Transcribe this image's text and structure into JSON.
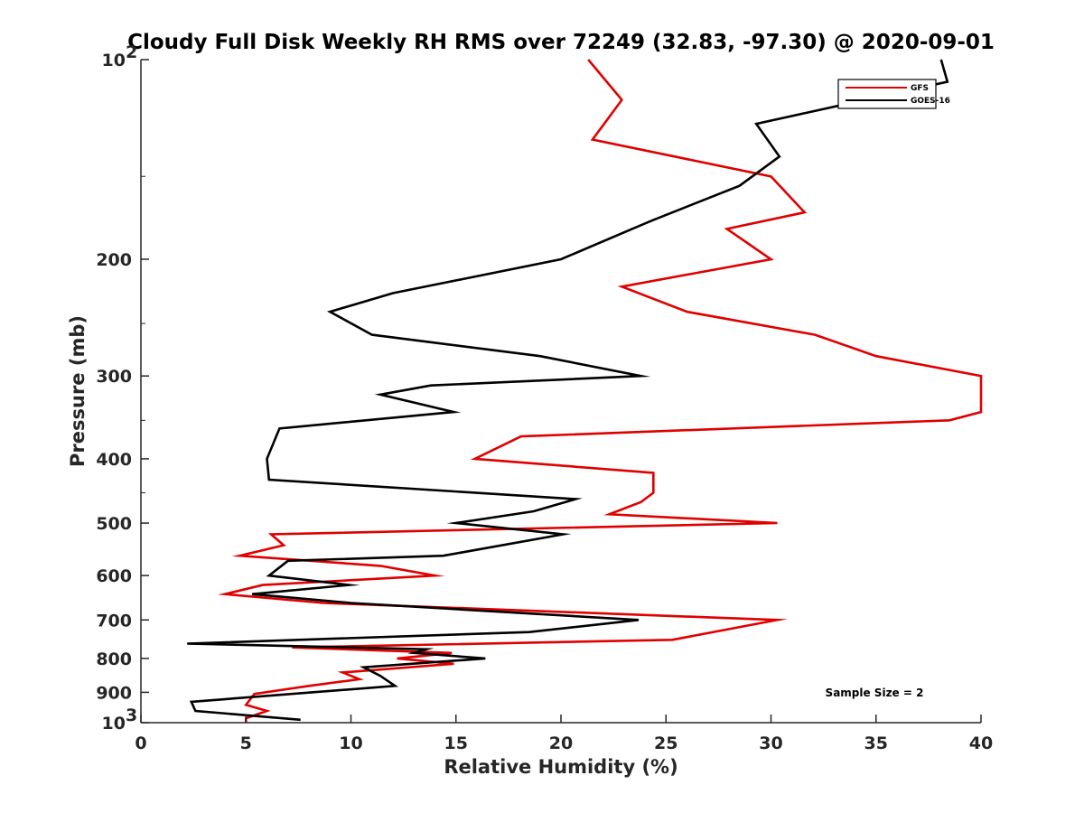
{
  "chart_data": {
    "type": "line",
    "title": "Cloudy Full Disk Weekly RH RMS over 72249 (32.83, -97.30) @ 2020-09-01",
    "xlabel": "Relative Humidity (%)",
    "ylabel": "Pressure (mb)",
    "xlim": [
      0,
      40
    ],
    "ylim": [
      100,
      1000
    ],
    "yscale": "log",
    "y_reversed": true,
    "grid": false,
    "x_ticks": [
      "0",
      "5",
      "10",
      "15",
      "20",
      "25",
      "30",
      "35",
      "40"
    ],
    "y_ticks": [
      {
        "value": 100,
        "base": "10",
        "exp": "2"
      },
      {
        "value": 200,
        "base": "200",
        "exp": ""
      },
      {
        "value": 300,
        "base": "300",
        "exp": ""
      },
      {
        "value": 400,
        "base": "400",
        "exp": ""
      },
      {
        "value": 500,
        "base": "500",
        "exp": ""
      },
      {
        "value": 600,
        "base": "600",
        "exp": ""
      },
      {
        "value": 700,
        "base": "700",
        "exp": ""
      },
      {
        "value": 800,
        "base": "800",
        "exp": ""
      },
      {
        "value": 900,
        "base": "900",
        "exp": ""
      },
      {
        "value": 1000,
        "base": "10",
        "exp": "3"
      }
    ],
    "legend_position": "top-right",
    "annotation": "Sample Size = 2",
    "series": [
      {
        "name": "GFS",
        "color": "#e00000",
        "points": [
          [
            21.3,
            100
          ],
          [
            22.9,
            115
          ],
          [
            21.5,
            132
          ],
          [
            30.0,
            150
          ],
          [
            31.6,
            170
          ],
          [
            27.9,
            180
          ],
          [
            30.0,
            200
          ],
          [
            22.9,
            220
          ],
          [
            26.0,
            240
          ],
          [
            32.1,
            260
          ],
          [
            35.0,
            280
          ],
          [
            40.0,
            300
          ],
          [
            40.0,
            340
          ],
          [
            38.5,
            350
          ],
          [
            18.1,
            370
          ],
          [
            15.9,
            400
          ],
          [
            24.4,
            420
          ],
          [
            24.4,
            450
          ],
          [
            23.8,
            465
          ],
          [
            22.3,
            485
          ],
          [
            30.3,
            500
          ],
          [
            6.2,
            520
          ],
          [
            6.8,
            540
          ],
          [
            4.7,
            560
          ],
          [
            11.4,
            580
          ],
          [
            14.0,
            600
          ],
          [
            5.8,
            620
          ],
          [
            4.0,
            640
          ],
          [
            8.7,
            660
          ],
          [
            30.3,
            700
          ],
          [
            25.3,
            750
          ],
          [
            7.2,
            770
          ],
          [
            14.8,
            785
          ],
          [
            12.2,
            800
          ],
          [
            14.9,
            815
          ],
          [
            9.6,
            840
          ],
          [
            10.4,
            860
          ],
          [
            8.0,
            880
          ],
          [
            5.4,
            905
          ],
          [
            5.0,
            940
          ],
          [
            6.0,
            960
          ],
          [
            5.0,
            985
          ],
          [
            5.0,
            1000
          ]
        ]
      },
      {
        "name": "GOES-16",
        "color": "#000000",
        "points": [
          [
            38.1,
            100
          ],
          [
            38.4,
            108
          ],
          [
            29.3,
            125
          ],
          [
            30.4,
            140
          ],
          [
            28.5,
            155
          ],
          [
            24.3,
            175
          ],
          [
            20.0,
            200
          ],
          [
            12.0,
            225
          ],
          [
            9.0,
            240
          ],
          [
            11.0,
            260
          ],
          [
            19.0,
            280
          ],
          [
            23.8,
            300
          ],
          [
            13.8,
            310
          ],
          [
            11.4,
            320
          ],
          [
            14.9,
            340
          ],
          [
            6.6,
            360
          ],
          [
            6.0,
            400
          ],
          [
            6.1,
            430
          ],
          [
            20.7,
            460
          ],
          [
            18.7,
            480
          ],
          [
            15.0,
            500
          ],
          [
            20.1,
            520
          ],
          [
            14.4,
            560
          ],
          [
            7.0,
            570
          ],
          [
            6.1,
            600
          ],
          [
            9.9,
            620
          ],
          [
            5.3,
            640
          ],
          [
            10.0,
            660
          ],
          [
            23.7,
            700
          ],
          [
            18.5,
            730
          ],
          [
            2.2,
            760
          ],
          [
            13.6,
            775
          ],
          [
            13.0,
            785
          ],
          [
            16.4,
            800
          ],
          [
            10.6,
            825
          ],
          [
            11.4,
            850
          ],
          [
            12.1,
            880
          ],
          [
            2.4,
            930
          ],
          [
            2.6,
            960
          ],
          [
            7.6,
            990
          ]
        ]
      }
    ]
  }
}
